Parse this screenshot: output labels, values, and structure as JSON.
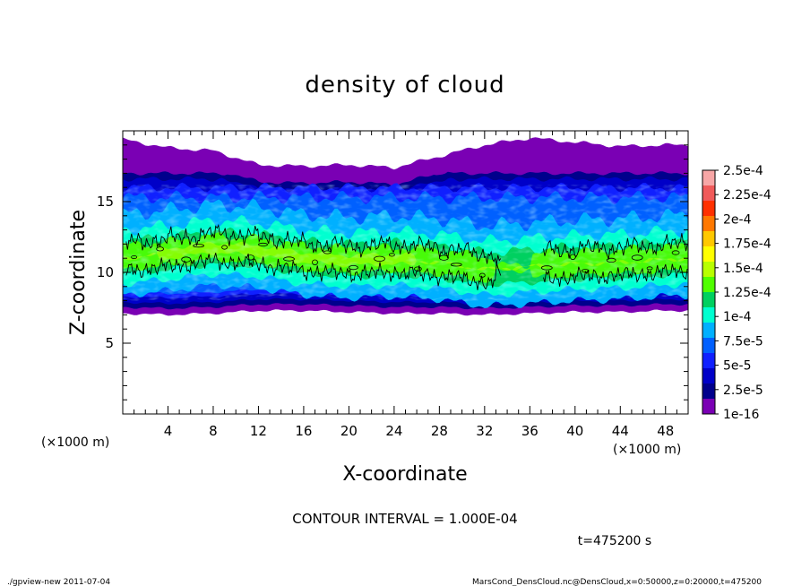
{
  "chart_data": {
    "type": "heatmap",
    "title": "density of cloud",
    "xlabel": "X-coordinate",
    "ylabel": "Z-coordinate",
    "x_unit_left": "(×1000 m)",
    "x_unit_right": "(×1000 m)",
    "xlim": [
      0,
      50
    ],
    "ylim": [
      0,
      20
    ],
    "x_ticks": [
      "4",
      "8",
      "12",
      "16",
      "20",
      "24",
      "28",
      "32",
      "36",
      "40",
      "44",
      "48"
    ],
    "y_ticks": [
      "5",
      "10",
      "15"
    ],
    "contour_interval": "CONTOUR INTERVAL = 1.000E-04",
    "time_label": "t=475200 s",
    "colorbar": {
      "labels": [
        "2.5e-4",
        "2.25e-4",
        "2e-4",
        "1.75e-4",
        "1.5e-4",
        "1.25e-4",
        "1e-4",
        "7.5e-5",
        "5e-5",
        "2.5e-5",
        "1e-16"
      ],
      "colors": [
        "#f7a6a6",
        "#f05a5a",
        "#ff3000",
        "#ff7800",
        "#ffc800",
        "#ffff00",
        "#b8ff00",
        "#50ff00",
        "#00d060",
        "#00ffd0",
        "#00b0ff",
        "#0060ff",
        "#1020ff",
        "#0000c8",
        "#00008c",
        "#7a00b4"
      ]
    },
    "cloud_profile": {
      "x": [
        0,
        4,
        8,
        12,
        16,
        20,
        24,
        28,
        32,
        36,
        40,
        44,
        48,
        50
      ],
      "top_z": [
        19.4,
        18.8,
        18.6,
        17.6,
        17.5,
        17.6,
        17.4,
        18.2,
        19.0,
        19.5,
        19.2,
        18.9,
        19.0,
        19.0
      ],
      "bottom_z": [
        7.1,
        7.0,
        7.1,
        7.3,
        7.3,
        7.2,
        7.1,
        7.1,
        7.0,
        7.1,
        7.2,
        7.2,
        7.3,
        7.3
      ],
      "core_z": [
        11.0,
        11.3,
        11.7,
        11.5,
        11.0,
        10.8,
        10.9,
        10.7,
        10.2,
        10.4,
        10.6,
        10.7,
        10.9,
        11.0
      ]
    },
    "footer_left": "./gpview-new   2011-07-04",
    "footer_right": "MarsCond_DensCloud.nc@DensCloud,x=0:50000,z=0:20000,t=475200"
  },
  "colors": {
    "frame": "#000000",
    "background": "#ffffff"
  }
}
